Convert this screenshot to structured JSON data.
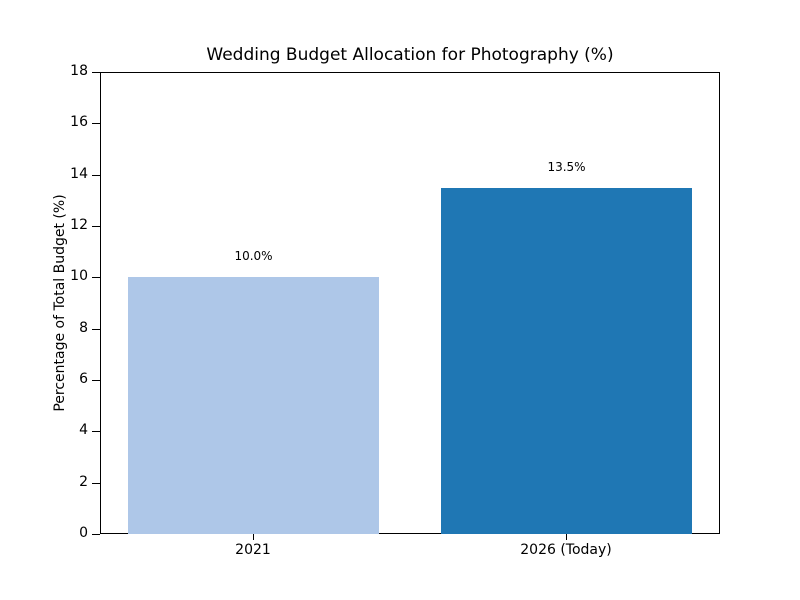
{
  "chart_data": {
    "type": "bar",
    "title": "Wedding Budget Allocation for Photography (%)",
    "xlabel": "",
    "ylabel": "Percentage of Total Budget (%)",
    "categories": [
      "2021",
      "2026 (Today)"
    ],
    "values": [
      10.0,
      13.5
    ],
    "value_labels": [
      "10.0%",
      "13.5%"
    ],
    "colors": [
      "#aec7e8",
      "#1f77b4"
    ],
    "ylim": [
      0,
      18
    ],
    "yticks": [
      "0",
      "2",
      "4",
      "6",
      "8",
      "10",
      "12",
      "14",
      "16",
      "18"
    ],
    "grid": false,
    "legend": null
  }
}
